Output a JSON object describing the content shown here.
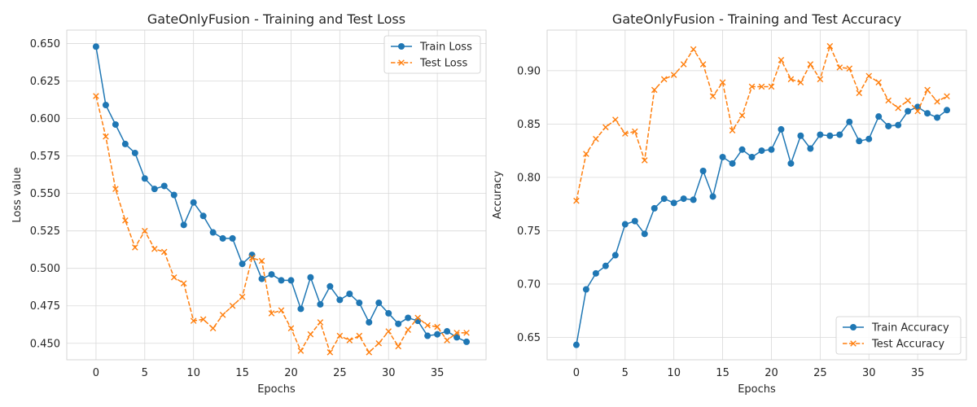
{
  "chart_data": [
    {
      "type": "line",
      "title": "GateOnlyFusion - Training and Test Loss",
      "xlabel": "Epochs",
      "ylabel": "Loss value",
      "xlim": [
        -3,
        40
      ],
      "ylim": [
        0.439,
        0.659
      ],
      "xticks": [
        0,
        5,
        10,
        15,
        20,
        25,
        30,
        35
      ],
      "xtick_labels": [
        "0",
        "5",
        "10",
        "15",
        "20",
        "25",
        "30",
        "35"
      ],
      "yticks": [
        0.45,
        0.475,
        0.5,
        0.525,
        0.55,
        0.575,
        0.6,
        0.625,
        0.65
      ],
      "ytick_labels": [
        "0.450",
        "0.475",
        "0.500",
        "0.525",
        "0.550",
        "0.575",
        "0.600",
        "0.625",
        "0.650"
      ],
      "grid": true,
      "legend_position": "top-right",
      "x": [
        0,
        1,
        2,
        3,
        4,
        5,
        6,
        7,
        8,
        9,
        10,
        11,
        12,
        13,
        14,
        15,
        16,
        17,
        18,
        19,
        20,
        21,
        22,
        23,
        24,
        25,
        26,
        27,
        28,
        29,
        30,
        31,
        32,
        33,
        34,
        35,
        36,
        37,
        38
      ],
      "series": [
        {
          "name": "Train Loss",
          "color": "#1f77b4",
          "marker": "circle",
          "linestyle": "solid",
          "values": [
            0.648,
            0.609,
            0.596,
            0.583,
            0.577,
            0.56,
            0.553,
            0.555,
            0.549,
            0.529,
            0.544,
            0.535,
            0.524,
            0.52,
            0.52,
            0.503,
            0.509,
            0.493,
            0.496,
            0.492,
            0.492,
            0.473,
            0.494,
            0.476,
            0.488,
            0.479,
            0.483,
            0.477,
            0.464,
            0.477,
            0.47,
            0.463,
            0.467,
            0.465,
            0.455,
            0.456,
            0.458,
            0.454,
            0.451
          ]
        },
        {
          "name": "Test Loss",
          "color": "#ff7f0e",
          "marker": "x",
          "linestyle": "dashed",
          "values": [
            0.615,
            0.588,
            0.553,
            0.532,
            0.514,
            0.525,
            0.513,
            0.511,
            0.494,
            0.49,
            0.465,
            0.466,
            0.46,
            0.469,
            0.475,
            0.481,
            0.507,
            0.505,
            0.47,
            0.472,
            0.46,
            0.445,
            0.456,
            0.464,
            0.444,
            0.455,
            0.452,
            0.455,
            0.444,
            0.45,
            0.458,
            0.448,
            0.459,
            0.467,
            0.462,
            0.461,
            0.452,
            0.457,
            0.457
          ]
        }
      ]
    },
    {
      "type": "line",
      "title": "GateOnlyFusion - Training and Test Accuracy",
      "xlabel": "Epochs",
      "ylabel": "Accuracy",
      "xlim": [
        -3,
        40
      ],
      "ylim": [
        0.629,
        0.938
      ],
      "xticks": [
        0,
        5,
        10,
        15,
        20,
        25,
        30,
        35
      ],
      "xtick_labels": [
        "0",
        "5",
        "10",
        "15",
        "20",
        "25",
        "30",
        "35"
      ],
      "yticks": [
        0.65,
        0.7,
        0.75,
        0.8,
        0.85,
        0.9
      ],
      "ytick_labels": [
        "0.65",
        "0.70",
        "0.75",
        "0.80",
        "0.85",
        "0.90"
      ],
      "grid": true,
      "legend_position": "bottom-right",
      "x": [
        0,
        1,
        2,
        3,
        4,
        5,
        6,
        7,
        8,
        9,
        10,
        11,
        12,
        13,
        14,
        15,
        16,
        17,
        18,
        19,
        20,
        21,
        22,
        23,
        24,
        25,
        26,
        27,
        28,
        29,
        30,
        31,
        32,
        33,
        34,
        35,
        36,
        37,
        38
      ],
      "series": [
        {
          "name": "Train Accuracy",
          "color": "#1f77b4",
          "marker": "circle",
          "linestyle": "solid",
          "values": [
            0.643,
            0.695,
            0.71,
            0.717,
            0.727,
            0.756,
            0.759,
            0.747,
            0.771,
            0.78,
            0.776,
            0.78,
            0.779,
            0.806,
            0.782,
            0.819,
            0.813,
            0.826,
            0.819,
            0.825,
            0.826,
            0.845,
            0.813,
            0.839,
            0.827,
            0.84,
            0.839,
            0.84,
            0.852,
            0.834,
            0.836,
            0.857,
            0.848,
            0.849,
            0.862,
            0.866,
            0.86,
            0.856,
            0.863
          ]
        },
        {
          "name": "Test Accuracy",
          "color": "#ff7f0e",
          "marker": "x",
          "linestyle": "dashed",
          "values": [
            0.778,
            0.822,
            0.836,
            0.847,
            0.854,
            0.841,
            0.843,
            0.816,
            0.882,
            0.892,
            0.896,
            0.906,
            0.92,
            0.906,
            0.876,
            0.889,
            0.844,
            0.858,
            0.885,
            0.885,
            0.885,
            0.91,
            0.892,
            0.889,
            0.906,
            0.892,
            0.923,
            0.903,
            0.902,
            0.879,
            0.895,
            0.889,
            0.872,
            0.865,
            0.872,
            0.862,
            0.882,
            0.871,
            0.876
          ]
        }
      ]
    }
  ]
}
